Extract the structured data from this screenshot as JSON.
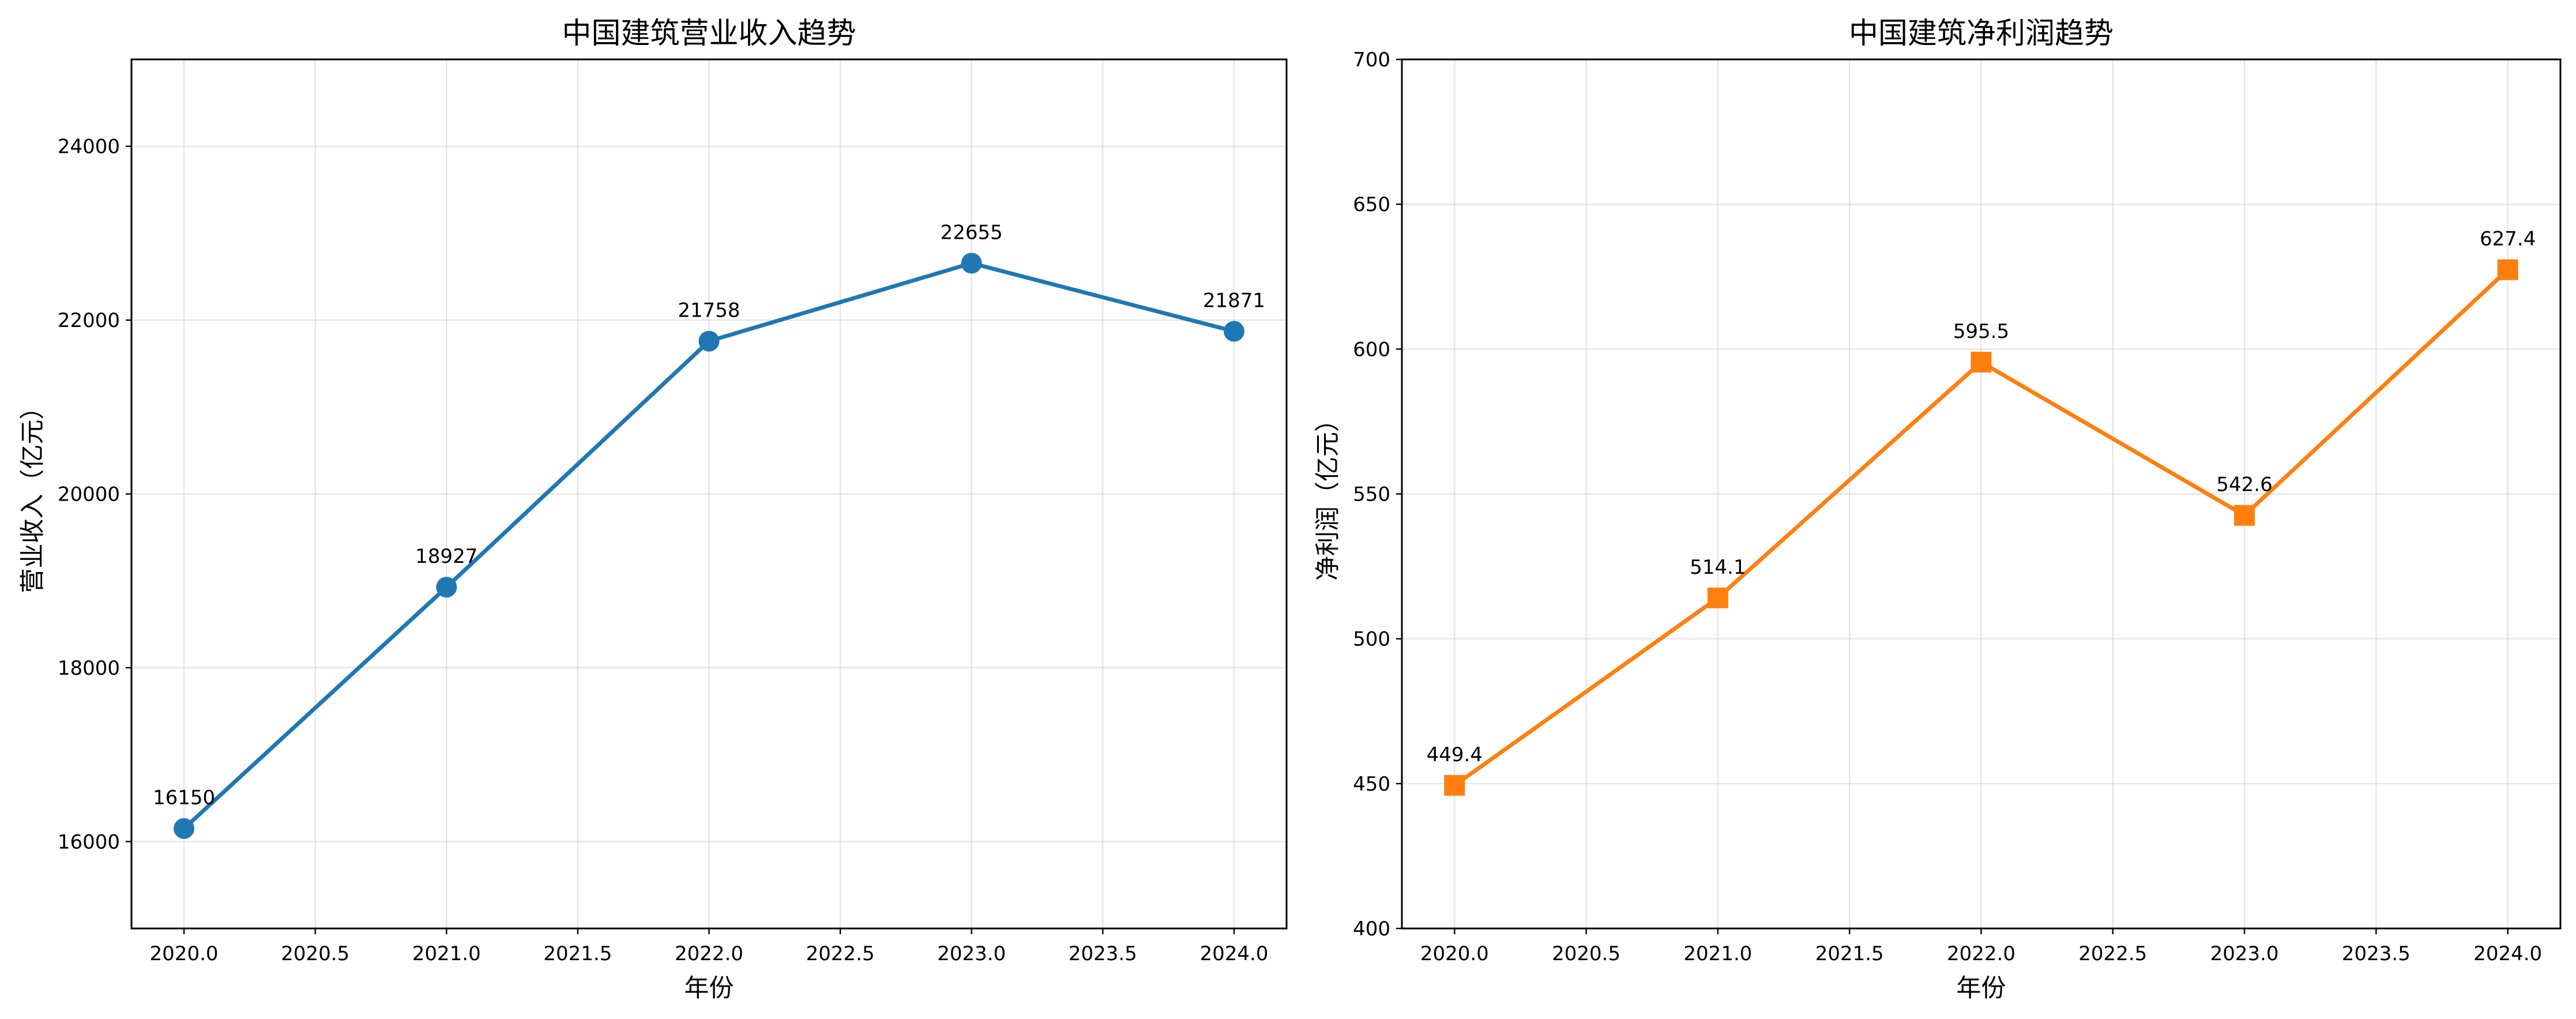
{
  "chart_data": [
    {
      "type": "line",
      "title": "中国建筑营业收入趋势",
      "xlabel": "年份",
      "ylabel": "营业收入（亿元）",
      "x": [
        2020,
        2021,
        2022,
        2023,
        2024
      ],
      "series": [
        {
          "values": [
            16150,
            18927,
            21758,
            22655,
            21871
          ],
          "labels": [
            "16150",
            "18927",
            "21758",
            "22655",
            "21871"
          ],
          "color": "#1f77b4",
          "marker": "circle"
        }
      ],
      "xlim": [
        2019.8,
        2024.2
      ],
      "ylim": [
        15000,
        25000
      ],
      "xticks": [
        2020,
        2020.5,
        2021,
        2021.5,
        2022,
        2022.5,
        2023,
        2023.5,
        2024
      ],
      "xtick_labels": [
        "2020.0",
        "2020.5",
        "2021.0",
        "2021.5",
        "2022.0",
        "2022.5",
        "2023.0",
        "2023.5",
        "2024.0"
      ],
      "yticks": [
        16000,
        18000,
        20000,
        22000,
        24000
      ],
      "ytick_labels": [
        "16000",
        "18000",
        "20000",
        "22000",
        "24000"
      ],
      "grid": true
    },
    {
      "type": "line",
      "title": "中国建筑净利润趋势",
      "xlabel": "年份",
      "ylabel": "净利润（亿元）",
      "x": [
        2020,
        2021,
        2022,
        2023,
        2024
      ],
      "series": [
        {
          "values": [
            449.4,
            514.1,
            595.5,
            542.6,
            627.4
          ],
          "labels": [
            "449.4",
            "514.1",
            "595.5",
            "542.6",
            "627.4"
          ],
          "color": "#ff7f0e",
          "marker": "square"
        }
      ],
      "xlim": [
        2019.8,
        2024.2
      ],
      "ylim": [
        400,
        700
      ],
      "xticks": [
        2020,
        2020.5,
        2021,
        2021.5,
        2022,
        2022.5,
        2023,
        2023.5,
        2024
      ],
      "xtick_labels": [
        "2020.0",
        "2020.5",
        "2021.0",
        "2021.5",
        "2022.0",
        "2022.5",
        "2023.0",
        "2023.5",
        "2024.0"
      ],
      "yticks": [
        400,
        450,
        500,
        550,
        600,
        650,
        700
      ],
      "ytick_labels": [
        "400",
        "450",
        "500",
        "550",
        "600",
        "650",
        "700"
      ],
      "grid": true
    }
  ]
}
